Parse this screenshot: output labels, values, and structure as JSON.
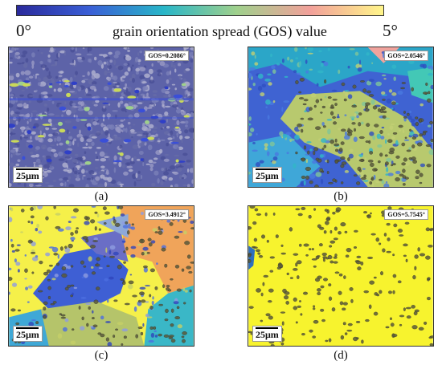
{
  "colorbar": {
    "min_label": "0°",
    "max_label": "5°",
    "title": "grain orientation spread (GOS) value",
    "colors": [
      "#2a2a9c",
      "#3a5fd6",
      "#28b6c8",
      "#9fd08c",
      "#f2a09a",
      "#fff58a"
    ]
  },
  "panels": [
    {
      "id": "a",
      "gos": "GOS=0.2086°",
      "scale": "25μm",
      "caption": "(a)",
      "mean_gos_deg": 0.2086
    },
    {
      "id": "b",
      "gos": "GOS=2.0546°",
      "scale": "25μm",
      "caption": "(b)",
      "mean_gos_deg": 2.0546
    },
    {
      "id": "c",
      "gos": "GOS=3.4912°",
      "scale": "25μm",
      "caption": "(c)",
      "mean_gos_deg": 3.4912
    },
    {
      "id": "d",
      "gos": "GOS=5.7545°",
      "scale": "25μm",
      "caption": "(d)",
      "mean_gos_deg": 5.7545
    }
  ]
}
